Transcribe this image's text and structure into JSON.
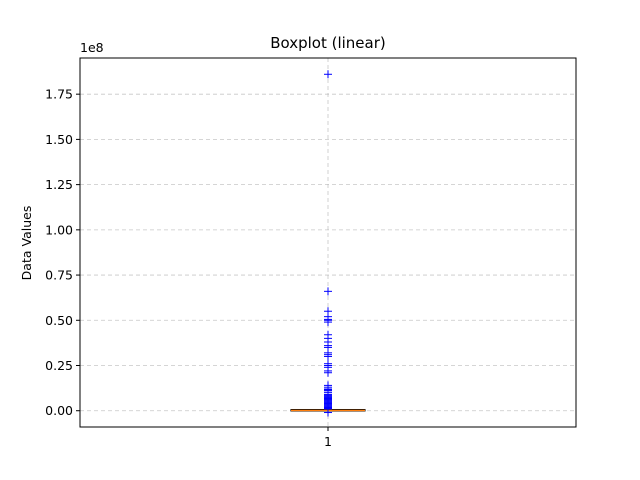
{
  "chart_data": {
    "type": "boxplot",
    "title": "Boxplot (linear)",
    "ylabel": "Data Values",
    "xlabel": "",
    "y_offset_label": "1e8",
    "y_scale_multiplier": 100000000,
    "ylim": [
      -0.09,
      1.95
    ],
    "y_ticks": [
      0.0,
      0.25,
      0.5,
      0.75,
      1.0,
      1.25,
      1.5,
      1.75
    ],
    "y_tick_labels": [
      "0.00",
      "0.25",
      "0.50",
      "0.75",
      "1.00",
      "1.25",
      "1.50",
      "1.75"
    ],
    "grid": true,
    "grid_style": "dashed",
    "categories": [
      "1"
    ],
    "box": {
      "q1": 0.0005,
      "median": 0.0015,
      "q3": 0.004,
      "whisker_low": 0.0,
      "whisker_high": 0.009,
      "box_color": "#000000",
      "median_color": "#ff7f0e"
    },
    "outliers": [
      1.86,
      0.66,
      0.55,
      0.52,
      0.505,
      0.5,
      0.49,
      0.42,
      0.4,
      0.38,
      0.36,
      0.35,
      0.32,
      0.31,
      0.3,
      0.26,
      0.25,
      0.24,
      0.22,
      0.21,
      0.14,
      0.13,
      0.12,
      0.115,
      0.11,
      0.1,
      0.09,
      0.085,
      0.08,
      0.075,
      0.07,
      0.065,
      0.06,
      0.055,
      0.05,
      0.045,
      0.04,
      0.035,
      0.03,
      0.025,
      0.02,
      0.015,
      0.01,
      -0.01
    ],
    "outlier_marker": "+",
    "outlier_color": "#0000ff"
  }
}
